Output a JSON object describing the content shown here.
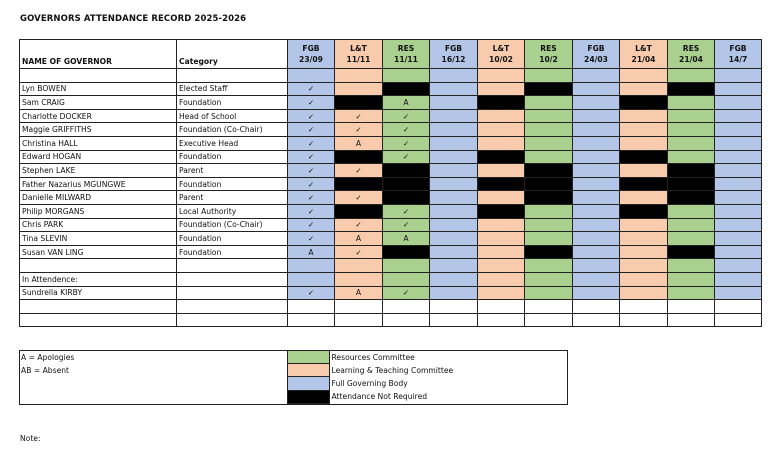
{
  "title": "GOVERNORS ATTENDANCE RECORD 2025-2026",
  "columns": {
    "name_header": "NAME OF GOVERNOR",
    "category_header": "Category",
    "meetings": [
      {
        "type": "FGB",
        "date": "23/09"
      },
      {
        "type": "L&T",
        "date": "11/11"
      },
      {
        "type": "RES",
        "date": "11/11"
      },
      {
        "type": "FGB",
        "date": "16/12"
      },
      {
        "type": "L&T",
        "date": "10/02"
      },
      {
        "type": "RES",
        "date": "10/2"
      },
      {
        "type": "FGB",
        "date": "24/03"
      },
      {
        "type": "L&T",
        "date": "21/04"
      },
      {
        "type": "RES",
        "date": "21/04"
      },
      {
        "type": "FGB",
        "date": "14/7"
      }
    ]
  },
  "colors": {
    "FGB": "#b4c6e7",
    "LT": "#f8cbad",
    "RES": "#a9d08e",
    "BLK": "#000000"
  },
  "governors": [
    {
      "name": "Lyn BOWEN",
      "category": "Elected Staff",
      "marks": [
        "✓",
        "",
        "",
        "",
        "",
        "",
        "",
        "",
        "",
        ""
      ],
      "fills": [
        "FGB",
        "LT",
        "BLK",
        "FGB",
        "LT",
        "BLK",
        "FGB",
        "LT",
        "BLK",
        "FGB"
      ]
    },
    {
      "name": "Sam CRAIG",
      "category": "Foundation",
      "marks": [
        "✓",
        "",
        "A",
        "",
        "",
        "",
        "",
        "",
        "",
        ""
      ],
      "fills": [
        "FGB",
        "BLK",
        "RES",
        "FGB",
        "BLK",
        "RES",
        "FGB",
        "BLK",
        "RES",
        "FGB"
      ]
    },
    {
      "name": "Charlotte DOCKER",
      "category": "Head of School",
      "marks": [
        "✓",
        "✓",
        "✓",
        "",
        "",
        "",
        "",
        "",
        "",
        ""
      ],
      "fills": [
        "FGB",
        "LT",
        "RES",
        "FGB",
        "LT",
        "RES",
        "FGB",
        "LT",
        "RES",
        "FGB"
      ]
    },
    {
      "name": "Maggie GRIFFITHS",
      "category": "Foundation (Co-Chair)",
      "marks": [
        "✓",
        "✓",
        "✓",
        "",
        "",
        "",
        "",
        "",
        "",
        ""
      ],
      "fills": [
        "FGB",
        "LT",
        "RES",
        "FGB",
        "LT",
        "RES",
        "FGB",
        "LT",
        "RES",
        "FGB"
      ]
    },
    {
      "name": "Christina HALL",
      "category": "Executive Head",
      "marks": [
        "✓",
        "A",
        "✓",
        "",
        "",
        "",
        "",
        "",
        "",
        ""
      ],
      "fills": [
        "FGB",
        "LT",
        "RES",
        "FGB",
        "LT",
        "RES",
        "FGB",
        "LT",
        "RES",
        "FGB"
      ]
    },
    {
      "name": "Edward HOGAN",
      "category": "Foundation",
      "marks": [
        "✓",
        "",
        "✓",
        "",
        "",
        "",
        "",
        "",
        "",
        ""
      ],
      "fills": [
        "FGB",
        "BLK",
        "RES",
        "FGB",
        "BLK",
        "RES",
        "FGB",
        "BLK",
        "RES",
        "FGB"
      ]
    },
    {
      "name": "Stephen LAKE",
      "category": "Parent",
      "marks": [
        "✓",
        "✓",
        "",
        "",
        "",
        "",
        "",
        "",
        "",
        ""
      ],
      "fills": [
        "FGB",
        "LT",
        "BLK",
        "FGB",
        "LT",
        "BLK",
        "FGB",
        "LT",
        "BLK",
        "FGB"
      ]
    },
    {
      "name": "Father Nazarius MGUNGWE",
      "category": "Foundation",
      "marks": [
        "✓",
        "",
        "",
        "",
        "",
        "",
        "",
        "",
        "",
        ""
      ],
      "fills": [
        "FGB",
        "BLK",
        "BLK",
        "FGB",
        "BLK",
        "BLK",
        "FGB",
        "BLK",
        "BLK",
        "FGB"
      ]
    },
    {
      "name": "Danielle MILWARD",
      "category": "Parent",
      "marks": [
        "✓",
        "✓",
        "",
        "",
        "",
        "",
        "",
        "",
        "",
        ""
      ],
      "fills": [
        "FGB",
        "LT",
        "BLK",
        "FGB",
        "LT",
        "BLK",
        "FGB",
        "LT",
        "BLK",
        "FGB"
      ]
    },
    {
      "name": "Philip MORGANS",
      "category": "Local Authority",
      "marks": [
        "✓",
        "",
        "✓",
        "",
        "",
        "",
        "",
        "",
        "",
        ""
      ],
      "fills": [
        "FGB",
        "BLK",
        "RES",
        "FGB",
        "BLK",
        "RES",
        "FGB",
        "BLK",
        "RES",
        "FGB"
      ]
    },
    {
      "name": "Chris PARK",
      "category": "Foundation (Co-Chair)",
      "marks": [
        "✓",
        "✓",
        "✓",
        "",
        "",
        "",
        "",
        "",
        "",
        ""
      ],
      "fills": [
        "FGB",
        "LT",
        "RES",
        "FGB",
        "LT",
        "RES",
        "FGB",
        "LT",
        "RES",
        "FGB"
      ]
    },
    {
      "name": "Tina SLEVIN",
      "category": "Foundation",
      "marks": [
        "✓",
        "A",
        "A",
        "",
        "",
        "",
        "",
        "",
        "",
        ""
      ],
      "fills": [
        "FGB",
        "LT",
        "RES",
        "FGB",
        "LT",
        "RES",
        "FGB",
        "LT",
        "RES",
        "FGB"
      ]
    },
    {
      "name": "Susan VAN LING",
      "category": "Foundation",
      "marks": [
        "A",
        "✓",
        "",
        "",
        "",
        "",
        "",
        "",
        "",
        ""
      ],
      "fills": [
        "FGB",
        "LT",
        "BLK",
        "FGB",
        "LT",
        "BLK",
        "FGB",
        "LT",
        "BLK",
        "FGB"
      ]
    }
  ],
  "in_attendance_label": "In Attendence:",
  "attendees": [
    {
      "name": "Sundrella KIRBY",
      "category": "",
      "marks": [
        "✓",
        "A",
        "✓",
        "",
        "",
        "",
        "",
        "",
        "",
        ""
      ],
      "fills": [
        "FGB",
        "LT",
        "RES",
        "FGB",
        "LT",
        "RES",
        "FGB",
        "LT",
        "RES",
        "FGB"
      ]
    }
  ],
  "legend": {
    "left": [
      "A = Apologies",
      "AB = Absent",
      "",
      ""
    ],
    "items": [
      {
        "fill": "RES",
        "label": "Resources Committee"
      },
      {
        "fill": "LT",
        "label": "Learning & Teaching Committee"
      },
      {
        "fill": "FGB",
        "label": "Full Governing Body"
      },
      {
        "fill": "BLK",
        "label": "Attendance Not Required"
      }
    ]
  },
  "note_label": "Note:"
}
